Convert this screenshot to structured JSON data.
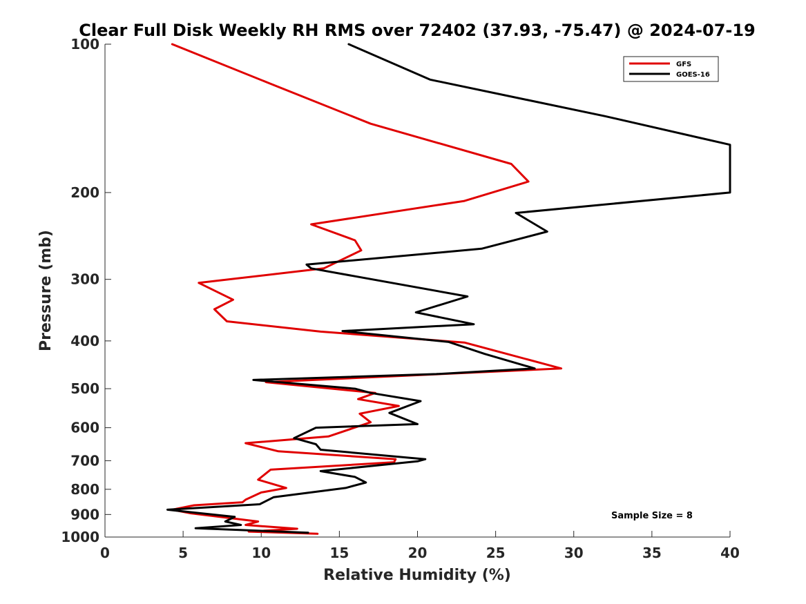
{
  "chart_data": {
    "type": "line",
    "title": "Clear Full Disk Weekly RH RMS over 72402 (37.93, -75.47) @ 2024-07-19",
    "xlabel": "Relative Humidity (%)",
    "ylabel": "Pressure (mb)",
    "xlim": [
      0,
      40
    ],
    "ylim": [
      100,
      1000
    ],
    "yscale": "log",
    "yreversed": true,
    "xticks": [
      0,
      5,
      10,
      15,
      20,
      25,
      30,
      35,
      40
    ],
    "yticks": [
      100,
      200,
      300,
      400,
      500,
      600,
      700,
      800,
      900,
      1000
    ],
    "legend_position": "top-right",
    "annotation": "Sample Size = 8",
    "series": [
      {
        "name": "GFS",
        "color": "#e00000",
        "x": [
          4.3,
          10.5,
          17.0,
          26.0,
          27.1,
          23.0,
          13.2,
          16.0,
          16.4,
          14.0,
          6.0,
          8.2,
          7.0,
          7.8,
          13.8,
          23.0,
          29.2,
          10.3,
          17.3,
          16.2,
          18.8,
          16.3,
          17.0,
          14.3,
          9.0,
          11.1,
          18.6,
          18.5,
          10.6,
          9.8,
          11.6,
          10.0,
          9.0,
          8.8,
          5.7,
          4.3,
          5.5,
          9.8,
          9.0,
          12.3,
          9.2,
          13.6
        ],
        "y": [
          100,
          120,
          145,
          175,
          190,
          208,
          232,
          250,
          262,
          285,
          305,
          330,
          345,
          365,
          383,
          403,
          455,
          485,
          510,
          525,
          542,
          562,
          585,
          625,
          645,
          670,
          695,
          705,
          730,
          765,
          795,
          812,
          840,
          850,
          862,
          880,
          895,
          930,
          945,
          962,
          975,
          985
        ]
      },
      {
        "name": "GOES-16",
        "color": "#000000",
        "x": [
          15.6,
          20.8,
          32.0,
          40.0,
          40.0,
          26.3,
          28.3,
          24.1,
          12.9,
          13.2,
          23.2,
          19.9,
          23.6,
          15.2,
          22.0,
          24.3,
          27.5,
          21.2,
          9.5,
          16.0,
          17.0,
          20.2,
          18.2,
          20.0,
          13.5,
          12.1,
          13.5,
          13.8,
          20.5,
          20.0,
          13.8,
          16.0,
          16.7,
          15.4,
          10.8,
          9.9,
          4.0,
          8.3,
          7.7,
          8.7,
          5.8,
          13.0
        ],
        "y": [
          100,
          118,
          140,
          160,
          200,
          220,
          240,
          260,
          280,
          285,
          325,
          350,
          370,
          382,
          402,
          425,
          455,
          467,
          480,
          500,
          510,
          530,
          560,
          590,
          600,
          630,
          648,
          665,
          695,
          702,
          735,
          755,
          775,
          795,
          830,
          858,
          880,
          910,
          930,
          945,
          960,
          980
        ]
      }
    ]
  }
}
